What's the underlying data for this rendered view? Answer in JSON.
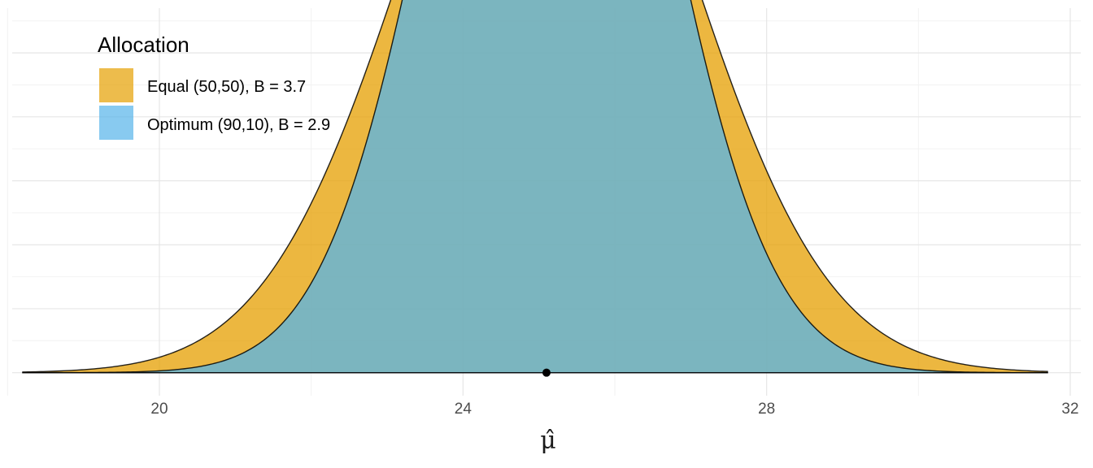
{
  "chart_data": {
    "type": "area",
    "xlabel": "μ̂",
    "ylabel": "",
    "xlim": [
      17.9,
      32.3
    ],
    "ylim": [
      -0.0072,
      0.114
    ],
    "x_ticks": [
      20,
      24,
      28,
      32
    ],
    "x_tick_labels": [
      "20",
      "24",
      "28",
      "32"
    ],
    "grid": true,
    "legend": {
      "title": "Allocation",
      "placement": "top-left"
    },
    "series": [
      {
        "name": "Equal (50,50), B = 3.7",
        "distribution": "normal",
        "mean": 25.1,
        "sd": 1.85,
        "x_range": [
          18.2,
          31.7
        ],
        "fill": "#E69F00",
        "fill_opacity": 0.75
      },
      {
        "name": "Optimum (90,10), B = 2.9",
        "distribution": "normal",
        "mean": 25.1,
        "sd": 1.45,
        "x_range": [
          18.2,
          31.7
        ],
        "fill": "#56B4E9",
        "fill_opacity": 0.75
      }
    ],
    "points": [
      {
        "x": 25.1,
        "y": 0
      }
    ]
  }
}
